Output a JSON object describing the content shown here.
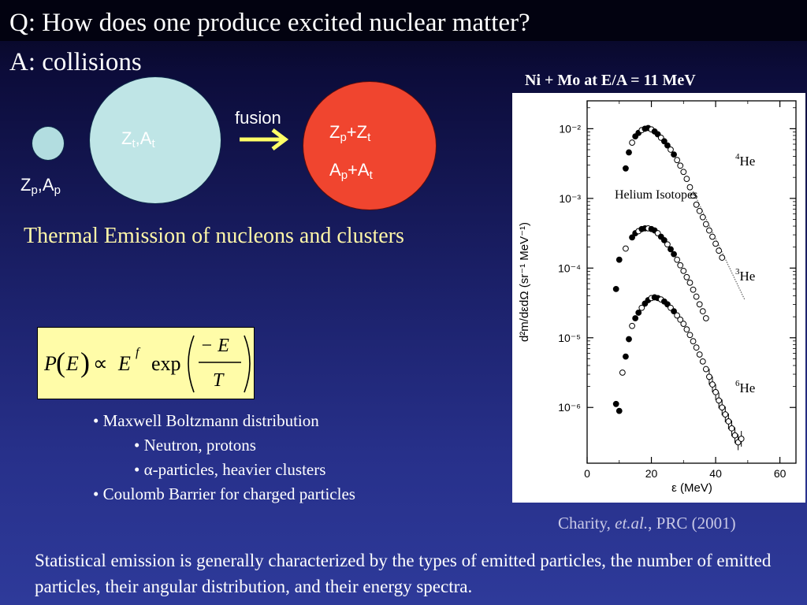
{
  "title": {
    "question": "Q: How does one produce excited nuclear matter?",
    "answer": "A: collisions"
  },
  "diagram": {
    "projectile": {
      "Z": "Z",
      "Z_sub": "p",
      "sep": ",",
      "A": "A",
      "A_sub": "p"
    },
    "target": {
      "Z": "Z",
      "Z_sub": "t",
      "sep": ",",
      "A": "A",
      "A_sub": "t"
    },
    "fusion_label": "fusion",
    "compound": {
      "line1": {
        "a": "Z",
        "a_sub": "p",
        "plus": "+",
        "b": "Z",
        "b_sub": "t"
      },
      "line2": {
        "a": "A",
        "a_sub": "p",
        "plus": "+",
        "b": "A",
        "b_sub": "t"
      }
    },
    "colors": {
      "small_nucleus": "#b2dde0",
      "target_nucleus": "#bfe5e6",
      "compound_nucleus": "#f0452f",
      "arrow": "#ffff66"
    }
  },
  "thermal_heading": "Thermal Emission of nucleons and clusters",
  "formula": {
    "P": "P",
    "E": "E",
    "prop": "∝",
    "E2": "E",
    "exp_f": "f",
    "exp": "exp",
    "num": "− E",
    "den": "T"
  },
  "bullets": [
    {
      "level": 1,
      "text": "• Maxwell Boltzmann distribution"
    },
    {
      "level": 2,
      "text": "• Neutron, protons"
    },
    {
      "level": 2,
      "text": "• α-particles, heavier clusters"
    },
    {
      "level": 1,
      "text": "• Coulomb Barrier for charged particles"
    }
  ],
  "figure": {
    "title": "Ni + Mo at E/A = 11 MeV",
    "annotation": "Helium Isotopes",
    "isotope_labels": [
      {
        "mass": "4",
        "symbol": "He"
      },
      {
        "mass": "3",
        "symbol": "He"
      },
      {
        "mass": "6",
        "symbol": "He"
      }
    ],
    "citation_pre": "Charity, ",
    "citation_em": "et.al.",
    "citation_post": ", PRC (2001)"
  },
  "chart_data": {
    "type": "scatter",
    "title": "Ni + Mo at E/A = 11 MeV",
    "xlabel": "ε (MeV)",
    "ylabel": "d²m/dεdΩ (sr⁻¹ MeV⁻¹)",
    "xlim": [
      0,
      65
    ],
    "ylim_log10": [
      -6.8,
      -1.6
    ],
    "log_y": true,
    "x_ticks": [
      "0",
      "20",
      "40",
      "60"
    ],
    "y_ticks": [
      "10⁻²",
      "10⁻³",
      "10⁻⁴",
      "10⁻⁵",
      "10⁻⁶"
    ],
    "series": [
      {
        "name": "⁴He",
        "points": [
          [
            12,
            -2.57
          ],
          [
            13,
            -2.34
          ],
          [
            14,
            -2.2
          ],
          [
            15,
            -2.11
          ],
          [
            16,
            -2.06
          ],
          [
            17,
            -2.02
          ],
          [
            18,
            -2.0
          ],
          [
            19,
            -1.99
          ],
          [
            20,
            -2.01
          ],
          [
            21,
            -2.04
          ],
          [
            22,
            -2.08
          ],
          [
            23,
            -2.13
          ],
          [
            24,
            -2.18
          ],
          [
            25,
            -2.24
          ],
          [
            26,
            -2.3
          ],
          [
            27,
            -2.37
          ],
          [
            28,
            -2.45
          ],
          [
            29,
            -2.53
          ],
          [
            30,
            -2.62
          ],
          [
            31,
            -2.72
          ],
          [
            32,
            -2.84
          ],
          [
            33,
            -2.96
          ],
          [
            34,
            -3.09
          ],
          [
            35,
            -3.18
          ],
          [
            36,
            -3.27
          ],
          [
            37,
            -3.37
          ],
          [
            38,
            -3.46
          ],
          [
            39,
            -3.55
          ],
          [
            40,
            -3.65
          ],
          [
            41,
            -3.75
          ],
          [
            42,
            -3.85
          ]
        ],
        "fit_line": [
          [
            33,
            -2.9
          ],
          [
            49,
            -4.45
          ]
        ]
      },
      {
        "name": "³He",
        "points": [
          [
            9,
            -4.3
          ],
          [
            10,
            -3.88
          ],
          [
            12,
            -3.72
          ],
          [
            14,
            -3.56
          ],
          [
            15,
            -3.5
          ],
          [
            16,
            -3.47
          ],
          [
            17,
            -3.44
          ],
          [
            18,
            -3.43
          ],
          [
            19,
            -3.43
          ],
          [
            20,
            -3.44
          ],
          [
            21,
            -3.46
          ],
          [
            22,
            -3.5
          ],
          [
            23,
            -3.55
          ],
          [
            24,
            -3.6
          ],
          [
            25,
            -3.66
          ],
          [
            26,
            -3.73
          ],
          [
            27,
            -3.8
          ],
          [
            28,
            -3.88
          ],
          [
            29,
            -3.96
          ],
          [
            30,
            -4.04
          ],
          [
            31,
            -4.13
          ],
          [
            32,
            -4.21
          ],
          [
            33,
            -4.31
          ],
          [
            34,
            -4.41
          ],
          [
            35,
            -4.52
          ],
          [
            36,
            -4.62
          ],
          [
            37,
            -4.72
          ]
        ]
      },
      {
        "name": "⁶He",
        "points": [
          [
            9,
            -5.95
          ],
          [
            10,
            -6.05
          ],
          [
            11,
            -5.5
          ],
          [
            12,
            -5.27
          ],
          [
            13,
            -5.02
          ],
          [
            14,
            -4.83
          ],
          [
            15,
            -4.72
          ],
          [
            16,
            -4.64
          ],
          [
            17,
            -4.57
          ],
          [
            18,
            -4.51
          ],
          [
            19,
            -4.46
          ],
          [
            20,
            -4.43
          ],
          [
            21,
            -4.42
          ],
          [
            22,
            -4.43
          ],
          [
            23,
            -4.45
          ],
          [
            24,
            -4.48
          ],
          [
            25,
            -4.52
          ],
          [
            26,
            -4.57
          ],
          [
            27,
            -4.62
          ],
          [
            28,
            -4.68
          ],
          [
            29,
            -4.74
          ],
          [
            30,
            -4.8
          ],
          [
            31,
            -4.88
          ],
          [
            32,
            -4.96
          ],
          [
            33,
            -5.05
          ],
          [
            34,
            -5.14
          ],
          [
            35,
            -5.24
          ],
          [
            36,
            -5.34
          ],
          [
            37,
            -5.45
          ],
          [
            38,
            -5.56
          ],
          [
            39,
            -5.67
          ],
          [
            40,
            -5.78
          ],
          [
            41,
            -5.9
          ],
          [
            42,
            -6.0
          ],
          [
            43,
            -6.1
          ],
          [
            44,
            -6.2
          ],
          [
            45,
            -6.3
          ],
          [
            46,
            -6.4
          ],
          [
            47,
            -6.5
          ],
          [
            48,
            -6.45
          ]
        ]
      }
    ],
    "grid": false
  },
  "bottom_text": "Statistical emission is generally characterized by the types of emitted particles, the number of emitted particles, their angular distribution, and their energy spectra."
}
